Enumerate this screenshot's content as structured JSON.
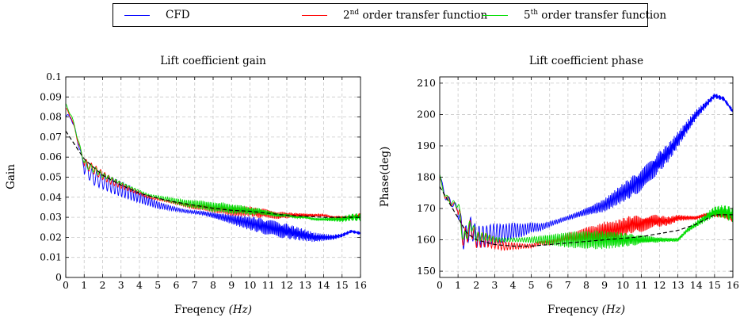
{
  "legend": {
    "items": [
      {
        "label": "CFD",
        "color": "#0000ff"
      },
      {
        "label_main": "2",
        "label_sup": "nd",
        "label_rest": " order transfer function",
        "color": "#ff0000"
      },
      {
        "label_main": "5",
        "label_sup": "th",
        "label_rest": " order transfer function",
        "color": "#00dd00"
      }
    ]
  },
  "colors": {
    "cfd": "#0000ff",
    "tf2": "#ff0000",
    "tf5": "#00dd00",
    "fit": "#000000",
    "grid": "#c8c8c8"
  },
  "chart_data": [
    {
      "type": "line",
      "title": "Lift coefficient gain",
      "xlabel_main": "Freqency ",
      "xlabel_unit": "(Hz)",
      "ylabel": "Gain",
      "xlim": [
        0,
        16
      ],
      "ylim": [
        0,
        0.1
      ],
      "xticks": [
        "0",
        "1",
        "2",
        "3",
        "4",
        "5",
        "6",
        "7",
        "8",
        "9",
        "10",
        "11",
        "12",
        "13",
        "14",
        "15",
        "16"
      ],
      "yticks": [
        "0",
        "0.01",
        "0.02",
        "0.03",
        "0.04",
        "0.05",
        "0.06",
        "0.07",
        "0.08",
        "0.09",
        "0.1"
      ],
      "grid": true,
      "series": [
        {
          "name": "CFD",
          "color": "#0000ff",
          "x": [
            0,
            0.3,
            0.6,
            1.0,
            1.5,
            2,
            2.5,
            3,
            3.5,
            4,
            4.5,
            5,
            5.5,
            6,
            6.5,
            7,
            7.5,
            8,
            8.5,
            9,
            9.5,
            10,
            10.5,
            11,
            11.5,
            12,
            12.5,
            13,
            13.5,
            14,
            14.5,
            15,
            15.5,
            16
          ],
          "y": [
            0.08,
            0.08,
            0.07,
            0.055,
            0.05,
            0.048,
            0.046,
            0.044,
            0.042,
            0.04,
            0.038,
            0.036,
            0.035,
            0.034,
            0.033,
            0.0325,
            0.032,
            0.031,
            0.03,
            0.029,
            0.028,
            0.027,
            0.026,
            0.025,
            0.024,
            0.023,
            0.022,
            0.021,
            0.02,
            0.02,
            0.02,
            0.021,
            0.023,
            0.022
          ],
          "osc": 0.004
        },
        {
          "name": "2nd order transfer function",
          "color": "#ff0000",
          "x": [
            0,
            0.3,
            0.6,
            1.0,
            1.5,
            2,
            2.5,
            3,
            3.5,
            4,
            4.5,
            5,
            5.5,
            6,
            6.5,
            7,
            7.5,
            8,
            8.5,
            9,
            9.5,
            10,
            10.5,
            11,
            11.5,
            12,
            12.5,
            13,
            13.5,
            14,
            14.5,
            15,
            15.5,
            16
          ],
          "y": [
            0.084,
            0.08,
            0.07,
            0.057,
            0.054,
            0.051,
            0.048,
            0.046,
            0.044,
            0.042,
            0.04,
            0.039,
            0.038,
            0.037,
            0.036,
            0.035,
            0.035,
            0.034,
            0.034,
            0.033,
            0.033,
            0.033,
            0.032,
            0.032,
            0.031,
            0.031,
            0.031,
            0.031,
            0.031,
            0.031,
            0.03,
            0.03,
            0.03,
            0.031
          ],
          "osc": 0.0025
        },
        {
          "name": "5th order transfer function",
          "color": "#00dd00",
          "x": [
            0,
            0.3,
            0.6,
            1.0,
            1.5,
            2,
            2.5,
            3,
            3.5,
            4,
            4.5,
            5,
            5.5,
            6,
            6.5,
            7,
            7.5,
            8,
            8.5,
            9,
            9.5,
            10,
            10.5,
            11,
            11.5,
            12,
            12.5,
            13,
            13.5,
            14,
            14.5,
            15,
            15.5,
            16
          ],
          "y": [
            0.086,
            0.081,
            0.071,
            0.057,
            0.054,
            0.051,
            0.049,
            0.047,
            0.045,
            0.043,
            0.041,
            0.04,
            0.039,
            0.038,
            0.037,
            0.0365,
            0.036,
            0.035,
            0.035,
            0.034,
            0.034,
            0.033,
            0.033,
            0.032,
            0.031,
            0.031,
            0.03,
            0.03,
            0.029,
            0.029,
            0.029,
            0.029,
            0.03,
            0.03
          ],
          "osc": 0.0025
        },
        {
          "name": "",
          "color": "#000000",
          "dashed": true,
          "x": [
            0,
            0.5,
            1,
            2,
            3,
            4,
            5,
            6,
            7,
            8,
            9,
            10,
            11,
            12,
            13,
            14,
            15,
            16
          ],
          "y": [
            0.073,
            0.066,
            0.059,
            0.051,
            0.046,
            0.042,
            0.0395,
            0.0375,
            0.036,
            0.0345,
            0.0335,
            0.033,
            0.032,
            0.031,
            0.0305,
            0.03,
            0.03,
            0.03
          ],
          "osc": 0
        }
      ]
    },
    {
      "type": "line",
      "title": "Lift coefficient phase",
      "xlabel_main": "Freqency ",
      "xlabel_unit": "(Hz)",
      "ylabel": "Phase(deg)",
      "xlim": [
        0,
        16
      ],
      "ylim": [
        148,
        212
      ],
      "xticks": [
        "0",
        "1",
        "2",
        "3",
        "4",
        "5",
        "6",
        "7",
        "8",
        "9",
        "10",
        "11",
        "12",
        "13",
        "14",
        "15",
        "16"
      ],
      "yticks": [
        "150",
        "160",
        "170",
        "180",
        "190",
        "200",
        "210"
      ],
      "ytick_values": [
        150,
        160,
        170,
        180,
        190,
        200,
        210
      ],
      "grid": true,
      "series": [
        {
          "name": "CFD",
          "color": "#0000ff",
          "x": [
            0,
            0.3,
            0.6,
            1.0,
            1.3,
            1.7,
            2,
            2.5,
            3,
            3.5,
            4,
            4.5,
            5,
            5.5,
            6,
            6.5,
            7,
            7.5,
            8,
            8.5,
            9,
            9.5,
            10,
            10.5,
            11,
            11.5,
            12,
            12.5,
            13,
            13.5,
            14,
            14.5,
            15,
            15.5,
            16
          ],
          "y": [
            180,
            174,
            172,
            170,
            160,
            164,
            161,
            161,
            162,
            162,
            163,
            163,
            164,
            164,
            165,
            166,
            167,
            168,
            169,
            170,
            171,
            173,
            175,
            177,
            179,
            182,
            185,
            188,
            192,
            196,
            200,
            203,
            206,
            205,
            201
          ],
          "osc": 3.5
        },
        {
          "name": "2nd order transfer function",
          "color": "#ff0000",
          "x": [
            0,
            0.3,
            0.6,
            1.0,
            1.3,
            1.7,
            2,
            2.5,
            3,
            3.5,
            4,
            4.5,
            5,
            5.5,
            6,
            6.5,
            7,
            7.5,
            8,
            8.5,
            9,
            9.5,
            10,
            10.5,
            11,
            11.5,
            12,
            12.5,
            13,
            13.5,
            14,
            14.5,
            15,
            15.5,
            16
          ],
          "y": [
            179,
            174,
            172,
            170,
            160,
            164,
            160,
            160,
            159,
            158,
            158,
            158,
            158,
            159,
            159,
            160,
            161,
            161,
            162,
            162,
            163,
            163,
            164,
            165,
            165,
            166,
            166,
            166,
            167,
            167,
            167,
            168,
            168,
            168,
            167
          ],
          "osc": 3
        },
        {
          "name": "5th order transfer function",
          "color": "#00dd00",
          "x": [
            0,
            0.3,
            0.6,
            1.0,
            1.3,
            1.7,
            2,
            2.5,
            3,
            3.5,
            4,
            4.5,
            5,
            5.5,
            6,
            6.5,
            7,
            7.5,
            8,
            8.5,
            9,
            9.5,
            10,
            10.5,
            11,
            11.5,
            12,
            12.5,
            13,
            13.5,
            14,
            14.5,
            15,
            15.5,
            16
          ],
          "y": [
            180,
            174,
            172,
            171,
            160,
            165,
            161,
            161,
            160,
            160,
            160,
            160,
            160,
            160,
            160,
            160,
            160,
            160,
            160,
            160,
            160,
            160,
            160,
            160,
            160,
            160,
            160,
            160,
            160,
            163,
            165,
            167,
            169,
            169,
            168
          ],
          "osc": 3
        },
        {
          "name": "",
          "color": "#000000",
          "dashed": true,
          "x": [
            0,
            0.5,
            1,
            1.5,
            2,
            3,
            4,
            5,
            6,
            7,
            8,
            9,
            10,
            11,
            12,
            13,
            14,
            15,
            16
          ],
          "y": [
            177,
            172,
            167,
            162,
            160,
            158.5,
            158,
            158,
            158.5,
            159,
            159.5,
            160,
            160.5,
            161,
            162,
            163,
            165,
            168,
            168
          ],
          "osc": 0
        }
      ]
    }
  ]
}
